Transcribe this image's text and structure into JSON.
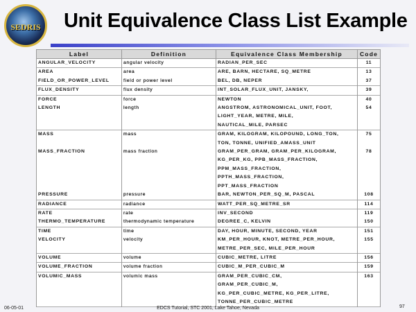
{
  "logo_text": "SEDRIS",
  "title": "Unit Equivalence Class List Example",
  "table": {
    "headers": [
      "Label",
      "Definition",
      "Equivalence Class Membership",
      "Code"
    ],
    "groups": [
      [
        {
          "label": "ANGULAR_VELOCITY",
          "definition": "angular velocity",
          "members": [
            "RADIAN_PER_SEC"
          ],
          "code": "11"
        }
      ],
      [
        {
          "label": "AREA",
          "definition": "area",
          "members": [
            "ARE, BARN, HECTARE, SQ_METRE"
          ],
          "code": "13"
        },
        {
          "label": "FIELD_OR_POWER_LEVEL",
          "definition": "field or power level",
          "members": [
            "BEL, DB, NEPER"
          ],
          "code": "37"
        }
      ],
      [
        {
          "label": "FLUX_DENSITY",
          "definition": "flux density",
          "members": [
            "INT_SOLAR_FLUX_UNIT, JANSKY,"
          ],
          "code": "39"
        }
      ],
      [
        {
          "label": "FORCE",
          "definition": "force",
          "members": [
            "NEWTON"
          ],
          "code": "40"
        },
        {
          "label": "LENGTH",
          "definition": "length",
          "members": [
            "ANGSTROM, ASTRONOMICAL_UNIT, FOOT,",
            "LIGHT_YEAR, METRE, MILE,",
            "NAUTICAL_MILE, PARSEC"
          ],
          "code": "54"
        }
      ],
      [
        {
          "label": "MASS",
          "definition": "mass",
          "members": [
            "GRAM, KILOGRAM, KILOPOUND, LONG_TON,",
            "TON, TONNE, UNIFIED_AMASS_UNIT"
          ],
          "code": "75"
        },
        {
          "label": "MASS_FRACTION",
          "definition": "mass fraction",
          "members": [
            "GRAM_PER_GRAM, GRAM_PER_KILOGRAM,",
            "KG_PER_KG, PPB_MASS_FRACTION,",
            "PPM_MASS_FRACTION,",
            "PPTH_MASS_FRACTION,",
            "PPT_MASS_FRACTION"
          ],
          "code": "78"
        },
        {
          "label": "PRESSURE",
          "definition": "pressure",
          "members": [
            "BAR, NEWTON_PER_SQ_M, PASCAL"
          ],
          "code": "108"
        }
      ],
      [
        {
          "label": "RADIANCE",
          "definition": "radiance",
          "members": [
            "WATT_PER_SQ_METRE_SR"
          ],
          "code": "114"
        }
      ],
      [
        {
          "label": "RATE",
          "definition": "rate",
          "members": [
            "INV_SECOND"
          ],
          "code": "119"
        },
        {
          "label": "THERMO_TEMPERATURE",
          "definition": "thermodynamic temperature",
          "members": [
            "DEGREE_C, KELVIN"
          ],
          "code": "150"
        }
      ],
      [
        {
          "label": "TIME",
          "definition": "time",
          "members": [
            "DAY, HOUR, MINUTE, SECOND, YEAR"
          ],
          "code": "151"
        },
        {
          "label": "VELOCITY",
          "definition": "velocity",
          "members": [
            "KM_PER_HOUR, KNOT, METRE_PER_HOUR,",
            "METRE_PER_SEC, MILE_PER_HOUR"
          ],
          "code": "155"
        }
      ],
      [
        {
          "label": "VOLUME",
          "definition": "volume",
          "members": [
            "CUBIC_METRE, LITRE"
          ],
          "code": "156"
        }
      ],
      [
        {
          "label": "VOLUME_FRACTION",
          "definition": "volume fraction",
          "members": [
            "CUBIC_M_PER_CUBIC_M"
          ],
          "code": "159"
        }
      ],
      [
        {
          "label": "VOLUMIC_MASS",
          "definition": "volumic mass",
          "members": [
            "GRAM_PER_CUBIC_CM,",
            "GRAM_PER_CUBIC_M,",
            "KG_PER_CUBIC_METRE, KG_PER_LITRE,",
            "TONNE_PER_CUBIC_METRE"
          ],
          "code": "163"
        }
      ]
    ]
  },
  "footer": {
    "date": "06-05-01",
    "center": "EDCS Tutorial, STC 2001, Lake Tahoe, Nevada",
    "page": "97"
  },
  "colors": {
    "rule_start": "#3a40c8",
    "logo_ring": "#d8b640",
    "header_bg": "#d9d9d9"
  }
}
